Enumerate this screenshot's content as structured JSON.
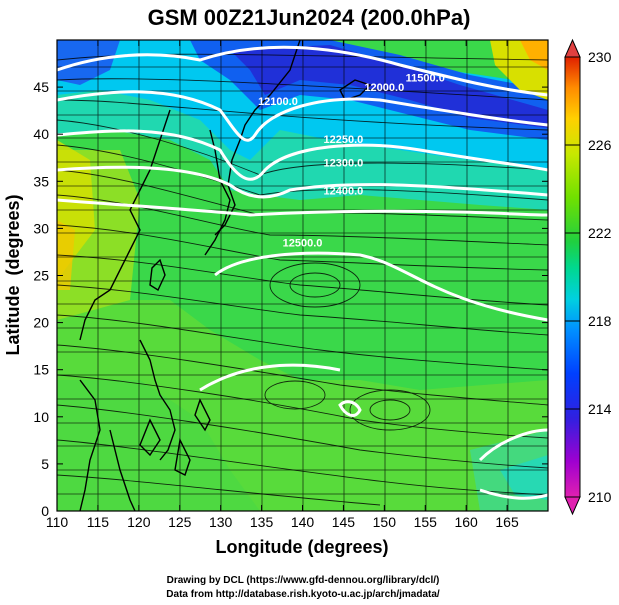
{
  "title": "GSM 00Z21Jun2024 (200.0hPa)",
  "credits": [
    "Drawing by DCL (https://www.gfd-dennou.org/library/dcl/)",
    "Data from http://database.rish.kyoto-u.ac.jp/arch/jmadata/"
  ],
  "chart_data": {
    "type": "heatmap",
    "title": "GSM 00Z21Jun2024 (200.0hPa)",
    "xlabel": "Longitude (degrees)",
    "ylabel": "Latitude  (degrees)",
    "xlim": [
      110,
      170
    ],
    "ylim": [
      0,
      50
    ],
    "x_ticks": [
      110,
      115,
      120,
      125,
      130,
      135,
      140,
      145,
      150,
      155,
      160,
      165
    ],
    "y_ticks": [
      0,
      5,
      10,
      15,
      20,
      25,
      30,
      35,
      40,
      45
    ],
    "grid": true,
    "colorbar": {
      "position": "right",
      "min": 210,
      "max": 230,
      "ticks": [
        210,
        214,
        218,
        222,
        226,
        230
      ],
      "colors": [
        "#e020b0",
        "#7a00d8",
        "#2020e0",
        "#0050ff",
        "#00b8ff",
        "#00e0c0",
        "#20d040",
        "#70e000",
        "#c0e800",
        "#ffd000",
        "#ff9000",
        "#e02000"
      ]
    },
    "contours": [
      {
        "label": "11500.0",
        "lat_at_155E": 46
      },
      {
        "label": "12000.0",
        "lat_at_150E": 45
      },
      {
        "label": "12100.0",
        "lat_at_137E": 43.5
      },
      {
        "label": "12250.0",
        "lat_at_145E": 39.5
      },
      {
        "label": "12300.0",
        "lat_at_145E": 37
      },
      {
        "label": "12400.0",
        "lat_at_145E": 34
      },
      {
        "label": "12500.0",
        "lat_at_140E": 28.5
      }
    ],
    "overlay": "streamlines (wind), coastlines"
  }
}
